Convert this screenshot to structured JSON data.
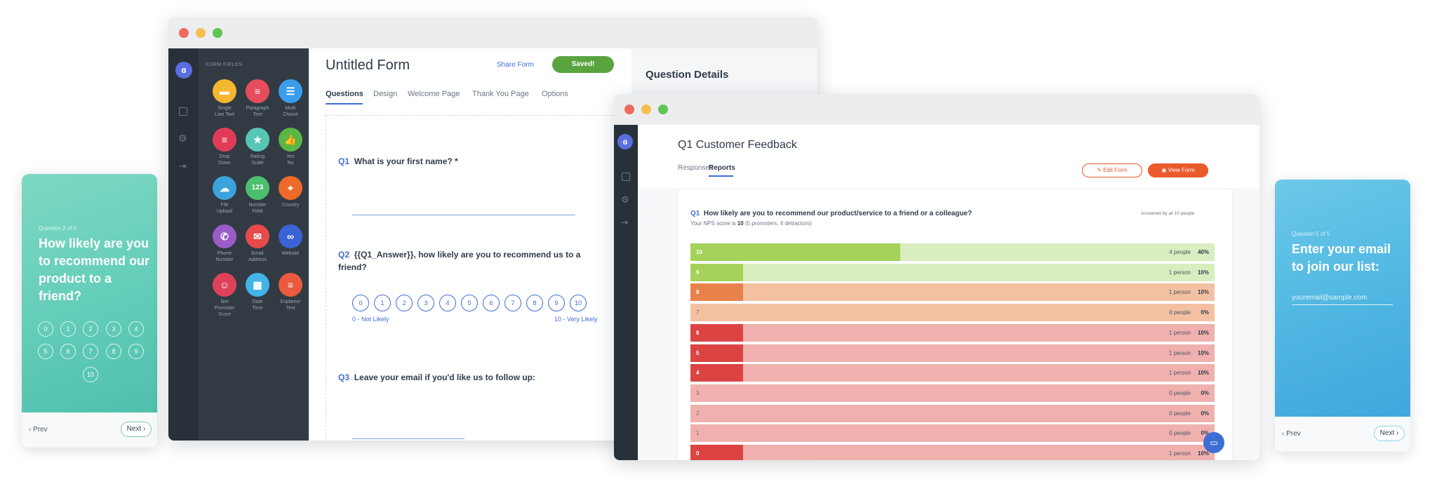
{
  "left_card": {
    "question_label": "Question 2 of 5",
    "title_lines": [
      "How likely are you",
      "to recommend our",
      "product to a",
      "friend?"
    ],
    "numbers": [
      "0",
      "1",
      "2",
      "3",
      "4",
      "5",
      "6",
      "7",
      "8",
      "9",
      "10"
    ],
    "prev": "Prev",
    "next": "Next"
  },
  "right_card": {
    "question_label": "Question 5 of 5",
    "title_lines": [
      "Enter your email",
      "to join our list:"
    ],
    "email_placeholder": "youremail@sample.com",
    "prev": "Prev",
    "next": "Next"
  },
  "builder": {
    "panel_label": "FORM FIELDS",
    "fields": [
      {
        "lines": [
          "Single",
          "Line Text"
        ],
        "color": "#f3b82f",
        "glyph": "▬"
      },
      {
        "lines": [
          "Paragraph",
          "Text"
        ],
        "color": "#e64c5c",
        "glyph": "≡"
      },
      {
        "lines": [
          "Multi",
          "Choice"
        ],
        "color": "#3b9cec",
        "glyph": "☰"
      },
      {
        "lines": [
          "Drop",
          "Down"
        ],
        "color": "#e03c58",
        "glyph": "≡"
      },
      {
        "lines": [
          "Rating",
          "Scale"
        ],
        "color": "#56c7b4",
        "glyph": "★"
      },
      {
        "lines": [
          "Yes",
          "No"
        ],
        "color": "#5cb645",
        "glyph": "👍"
      },
      {
        "lines": [
          "File",
          "Upload"
        ],
        "color": "#3aa3dc",
        "glyph": "☁"
      },
      {
        "lines": [
          "Number",
          "Field"
        ],
        "color": "#4cbf6c",
        "glyph": "123"
      },
      {
        "lines": [
          "Country",
          ""
        ],
        "color": "#ee6a2a",
        "glyph": "⌖"
      },
      {
        "lines": [
          "Phone",
          "Number"
        ],
        "color": "#9a5cc6",
        "glyph": "✆"
      },
      {
        "lines": [
          "Email",
          "Address"
        ],
        "color": "#e64a4a",
        "glyph": "✉"
      },
      {
        "lines": [
          "Website",
          ""
        ],
        "color": "#3b63d6",
        "glyph": "∞"
      },
      {
        "lines": [
          "Net",
          "Promoter",
          "Score"
        ],
        "color": "#e0415a",
        "glyph": "☺"
      },
      {
        "lines": [
          "Date",
          "Time"
        ],
        "color": "#42b4e8",
        "glyph": "▦"
      },
      {
        "lines": [
          "Explainer",
          "Text"
        ],
        "color": "#ea5a3e",
        "glyph": "≡"
      }
    ],
    "form_title": "Untitled Form",
    "share_form": "Share Form",
    "saved": "Saved!",
    "tabs": [
      "Questions",
      "Design",
      "Welcome Page",
      "Thank You Page",
      "Options"
    ],
    "questions": [
      {
        "num": "Q1",
        "text": "What is your first name? *"
      },
      {
        "num": "Q2",
        "text_lines": [
          "{{Q1_Answer}}, how likely are you to recommend us to a",
          "friend?"
        ]
      },
      {
        "num": "Q3",
        "text": "Leave your email if you'd like us to follow up:"
      }
    ],
    "scale": [
      "0",
      "1",
      "2",
      "3",
      "4",
      "5",
      "6",
      "7",
      "8",
      "9",
      "10"
    ],
    "scale_low": "0 - Not Likely",
    "scale_high": "10 - Very Likely",
    "details_title": "Question Details"
  },
  "report": {
    "title": "Q1 Customer Feedback",
    "tabs": [
      "Responses",
      "Reports"
    ],
    "edit_form": "Edit Form",
    "view_form": "View Form",
    "question_num": "Q1",
    "question_text": "How likely are you to recommend our product/service to a friend or a colleague?",
    "answered": "Answered by all 10 people",
    "nps_prefix": "Your NPS score is ",
    "nps_score": "10",
    "nps_suffix": " (5 promoters, 4 detractors)",
    "colors": {
      "promoter_fill": "#a4d25a",
      "promoter_bg": "#d9edbf",
      "passive_fill": "#e8824a",
      "passive_bg": "#f3c1a2",
      "detractor_fill": "#db4443",
      "detractor_bg": "#efb0ae"
    }
  },
  "chart_data": {
    "type": "bar",
    "orientation": "horizontal",
    "categories": [
      "10",
      "9",
      "8",
      "7",
      "6",
      "5",
      "4",
      "3",
      "2",
      "1",
      "0"
    ],
    "values": [
      40,
      10,
      10,
      0,
      10,
      10,
      10,
      0,
      0,
      0,
      10
    ],
    "people": [
      "4 people",
      "1 person",
      "1 person",
      "0 people",
      "1 person",
      "1 person",
      "1 person",
      "0 people",
      "0 people",
      "0 people",
      "1 person"
    ],
    "pct_labels": [
      "40%",
      "10%",
      "10%",
      "0%",
      "10%",
      "10%",
      "10%",
      "0%",
      "0%",
      "0%",
      "10%"
    ],
    "xlim": [
      0,
      100
    ]
  }
}
